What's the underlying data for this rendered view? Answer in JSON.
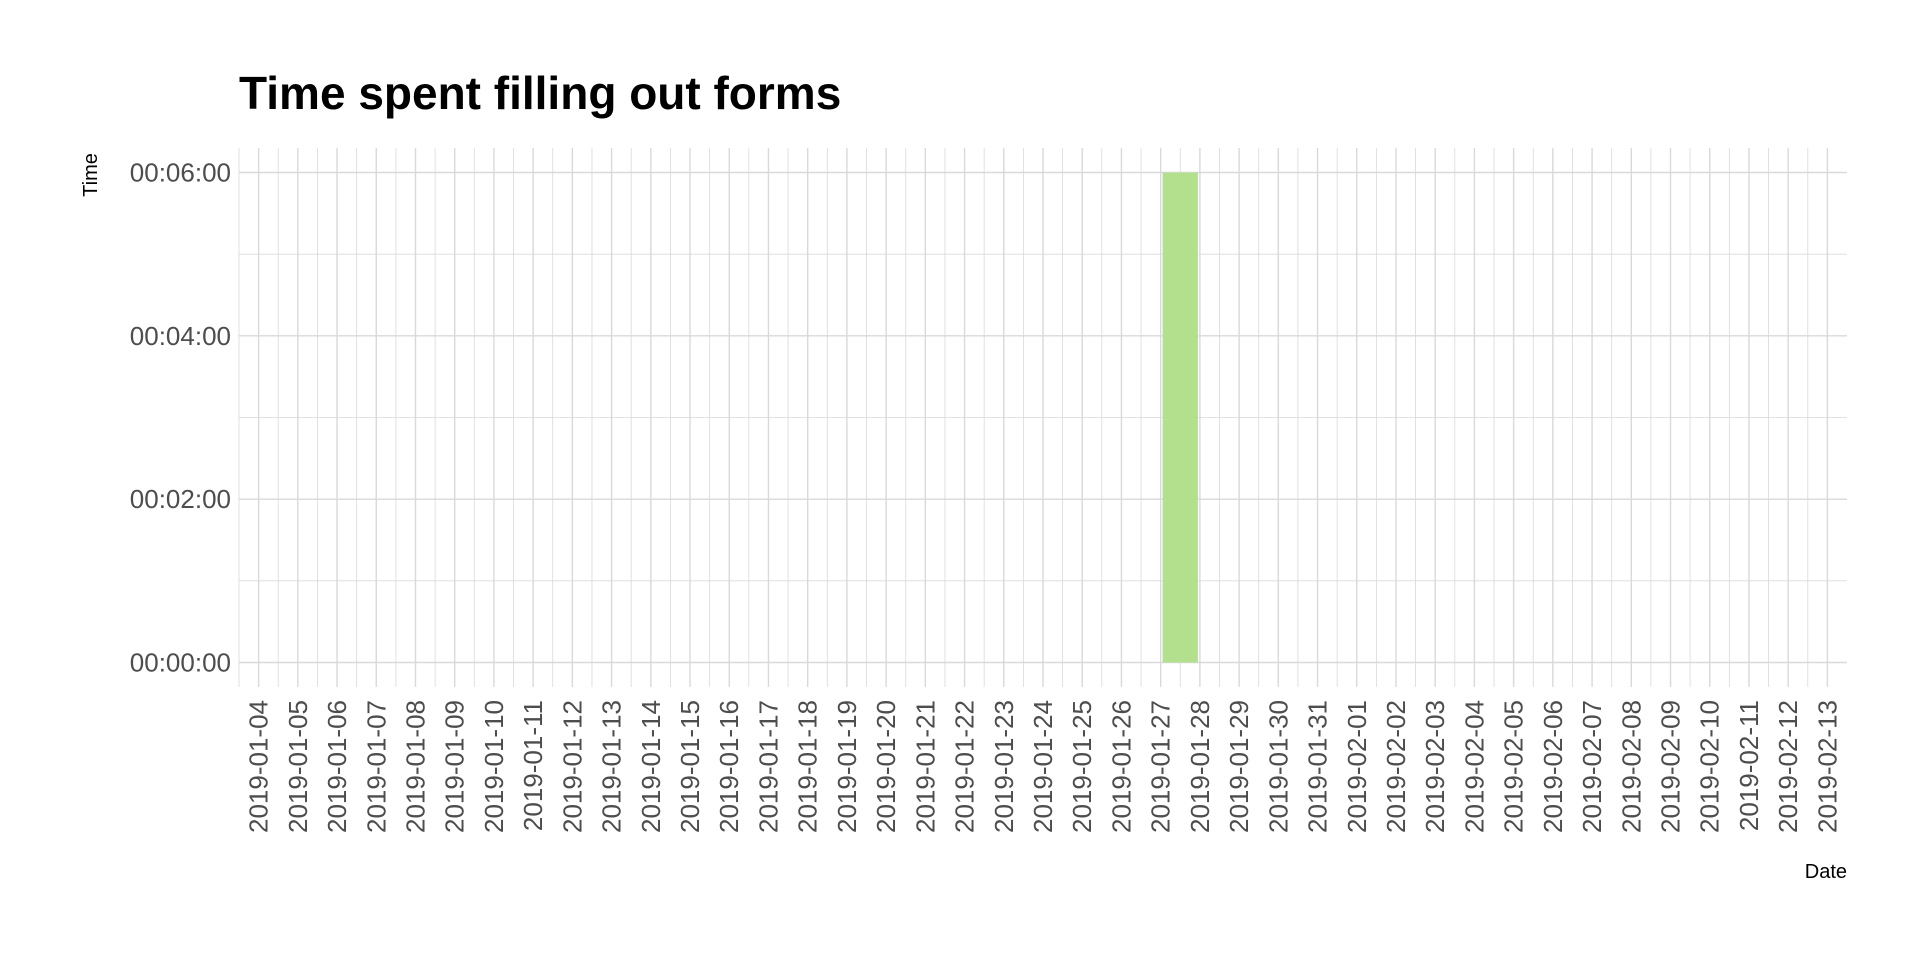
{
  "chart_data": {
    "type": "bar",
    "title": "Time spent filling out forms",
    "xlabel": "Date",
    "ylabel": "Time",
    "x_start": "2019-01-04",
    "x_end": "2019-02-13",
    "categories": [
      "2019-01-04",
      "2019-01-05",
      "2019-01-06",
      "2019-01-07",
      "2019-01-08",
      "2019-01-09",
      "2019-01-10",
      "2019-01-11",
      "2019-01-12",
      "2019-01-13",
      "2019-01-14",
      "2019-01-15",
      "2019-01-16",
      "2019-01-17",
      "2019-01-18",
      "2019-01-19",
      "2019-01-20",
      "2019-01-21",
      "2019-01-22",
      "2019-01-23",
      "2019-01-24",
      "2019-01-25",
      "2019-01-26",
      "2019-01-27",
      "2019-01-28",
      "2019-01-29",
      "2019-01-30",
      "2019-01-31",
      "2019-02-01",
      "2019-02-02",
      "2019-02-03",
      "2019-02-04",
      "2019-02-05",
      "2019-02-06",
      "2019-02-07",
      "2019-02-08",
      "2019-02-09",
      "2019-02-10",
      "2019-02-11",
      "2019-02-12",
      "2019-02-13"
    ],
    "bars": [
      {
        "date": "2019-01-27",
        "value": "00:06:00",
        "value_seconds": 360
      }
    ],
    "y_ticks": [
      {
        "label": "00:00:00",
        "value_seconds": 0
      },
      {
        "label": "00:02:00",
        "value_seconds": 120
      },
      {
        "label": "00:04:00",
        "value_seconds": 240
      },
      {
        "label": "00:06:00",
        "value_seconds": 360
      }
    ],
    "ylim_seconds": [
      -18,
      378
    ],
    "grid": true,
    "bar_color": "#b3e08c",
    "grid_color": "#d9d9d9",
    "tick_label_color": "#4d4d4d"
  }
}
